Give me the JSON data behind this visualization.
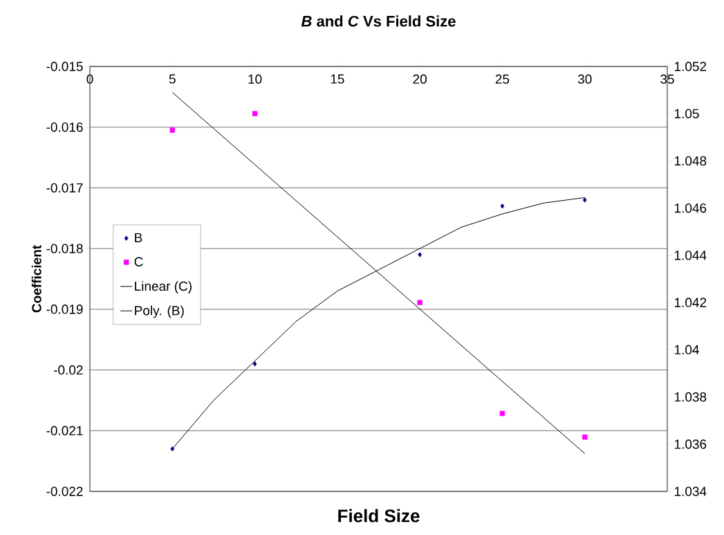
{
  "chart_data": {
    "type": "scatter",
    "title": "*B* and *C* Vs Field Size",
    "xlabel": "Field Size",
    "ylabel": "Coefficient",
    "x": [
      5,
      10,
      20,
      25,
      30
    ],
    "xlim": [
      0,
      35
    ],
    "xticks": [
      0,
      5,
      10,
      15,
      20,
      25,
      30,
      35
    ],
    "ylim": [
      -0.022,
      -0.015
    ],
    "yticks": [
      -0.022,
      -0.021,
      -0.02,
      -0.019,
      -0.018,
      -0.017,
      -0.016,
      -0.015
    ],
    "y2lim": [
      1.034,
      1.052
    ],
    "y2ticks": [
      1.034,
      1.036,
      1.038,
      1.04,
      1.042,
      1.044,
      1.046,
      1.048,
      1.05,
      1.052
    ],
    "grid": "y",
    "legend": "left",
    "series": [
      {
        "name": "B",
        "marker": "diamond",
        "color": "#000080",
        "values": [
          -0.0213,
          -0.0199,
          -0.0181,
          -0.0173,
          -0.0172
        ]
      },
      {
        "name": "C",
        "marker": "square",
        "axis": "y2",
        "color": "#ff00ff",
        "values": [
          1.0493,
          1.05,
          1.042,
          1.0373,
          1.0363
        ]
      },
      {
        "name": "Linear (C)",
        "type": "line",
        "marker": "none",
        "axis": "y2",
        "color": "#000000",
        "x": [
          5,
          30
        ],
        "values": [
          1.0509,
          1.0356
        ]
      },
      {
        "name": "Poly. (B)",
        "type": "line",
        "marker": "none",
        "color": "#000000",
        "x": [
          5,
          7.5,
          10,
          12.5,
          15,
          17.5,
          20,
          22.5,
          25,
          27.5,
          30
        ],
        "values": [
          -0.0213,
          -0.0205,
          -0.01985,
          -0.0192,
          -0.0187,
          -0.01835,
          -0.018,
          -0.01765,
          -0.01743,
          -0.01725,
          -0.01716
        ]
      }
    ]
  }
}
